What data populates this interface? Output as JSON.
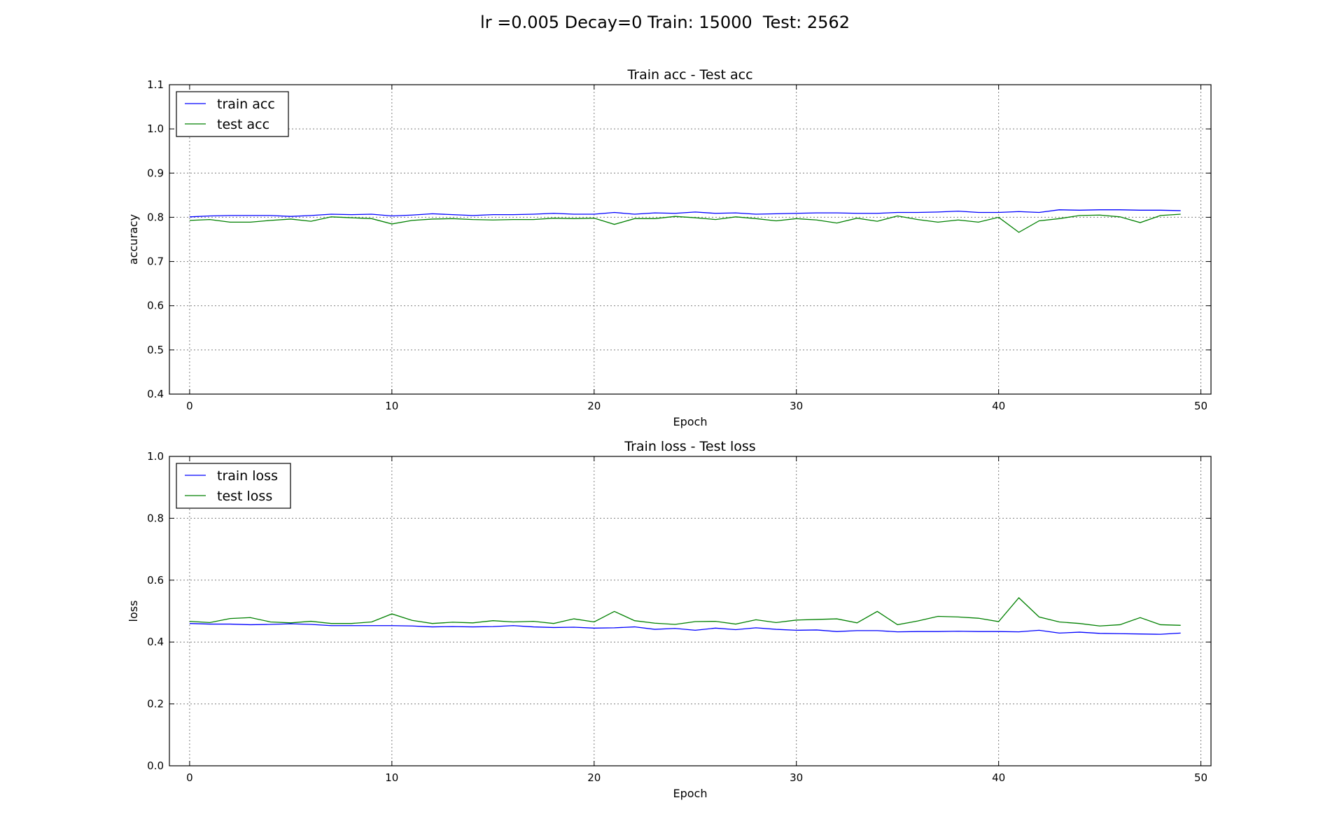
{
  "figure_title": "lr =0.005 Decay=0 Train: 15000  Test: 2562",
  "chart_data": [
    {
      "type": "line",
      "title": "Train acc - Test acc",
      "xlabel": "Epoch",
      "ylabel": "accuracy",
      "xlim": [
        -1,
        50.5
      ],
      "ylim": [
        0.4,
        1.1
      ],
      "xticks": [
        0,
        10,
        20,
        30,
        40,
        50
      ],
      "xtick_labels": [
        "0",
        "10",
        "20",
        "30",
        "40",
        "50"
      ],
      "yticks": [
        0.4,
        0.5,
        0.6,
        0.7,
        0.8,
        0.9,
        1.0,
        1.1
      ],
      "ytick_labels": [
        "0.4",
        "0.5",
        "0.6",
        "0.7",
        "0.8",
        "0.9",
        "1.0",
        "1.1"
      ],
      "grid": true,
      "legend_position": "upper-left",
      "x": [
        0,
        1,
        2,
        3,
        4,
        5,
        6,
        7,
        8,
        9,
        10,
        11,
        12,
        13,
        14,
        15,
        16,
        17,
        18,
        19,
        20,
        21,
        22,
        23,
        24,
        25,
        26,
        27,
        28,
        29,
        30,
        31,
        32,
        33,
        34,
        35,
        36,
        37,
        38,
        39,
        40,
        41,
        42,
        43,
        44,
        45,
        46,
        47,
        48,
        49
      ],
      "series": [
        {
          "name": "train acc",
          "color": "#0000ff",
          "values": [
            0.801,
            0.803,
            0.804,
            0.804,
            0.804,
            0.802,
            0.804,
            0.807,
            0.806,
            0.807,
            0.803,
            0.805,
            0.808,
            0.806,
            0.804,
            0.806,
            0.806,
            0.807,
            0.809,
            0.807,
            0.807,
            0.811,
            0.807,
            0.81,
            0.809,
            0.812,
            0.809,
            0.81,
            0.807,
            0.808,
            0.809,
            0.81,
            0.81,
            0.809,
            0.809,
            0.811,
            0.811,
            0.812,
            0.814,
            0.811,
            0.811,
            0.813,
            0.811,
            0.817,
            0.816,
            0.817,
            0.817,
            0.816,
            0.816,
            0.815
          ]
        },
        {
          "name": "test acc",
          "color": "#008000",
          "values": [
            0.793,
            0.795,
            0.789,
            0.789,
            0.793,
            0.796,
            0.791,
            0.801,
            0.799,
            0.797,
            0.785,
            0.793,
            0.796,
            0.797,
            0.795,
            0.794,
            0.795,
            0.795,
            0.798,
            0.797,
            0.798,
            0.784,
            0.797,
            0.797,
            0.802,
            0.799,
            0.795,
            0.801,
            0.797,
            0.792,
            0.797,
            0.794,
            0.787,
            0.798,
            0.791,
            0.803,
            0.795,
            0.789,
            0.794,
            0.789,
            0.8,
            0.766,
            0.792,
            0.797,
            0.804,
            0.805,
            0.801,
            0.788,
            0.804,
            0.807
          ]
        }
      ]
    },
    {
      "type": "line",
      "title": "Train loss - Test loss",
      "xlabel": "Epoch",
      "ylabel": "loss",
      "xlim": [
        -1,
        50.5
      ],
      "ylim": [
        0.0,
        1.0
      ],
      "xticks": [
        0,
        10,
        20,
        30,
        40,
        50
      ],
      "xtick_labels": [
        "0",
        "10",
        "20",
        "30",
        "40",
        "50"
      ],
      "yticks": [
        0.0,
        0.2,
        0.4,
        0.6,
        0.8,
        1.0
      ],
      "ytick_labels": [
        "0.0",
        "0.2",
        "0.4",
        "0.6",
        "0.8",
        "1.0"
      ],
      "grid": true,
      "legend_position": "upper-left",
      "x": [
        0,
        1,
        2,
        3,
        4,
        5,
        6,
        7,
        8,
        9,
        10,
        11,
        12,
        13,
        14,
        15,
        16,
        17,
        18,
        19,
        20,
        21,
        22,
        23,
        24,
        25,
        26,
        27,
        28,
        29,
        30,
        31,
        32,
        33,
        34,
        35,
        36,
        37,
        38,
        39,
        40,
        41,
        42,
        43,
        44,
        45,
        46,
        47,
        48,
        49
      ],
      "series": [
        {
          "name": "train loss",
          "color": "#0000ff",
          "values": [
            0.46,
            0.458,
            0.458,
            0.456,
            0.457,
            0.459,
            0.457,
            0.453,
            0.453,
            0.453,
            0.453,
            0.452,
            0.449,
            0.45,
            0.449,
            0.45,
            0.453,
            0.449,
            0.447,
            0.448,
            0.445,
            0.446,
            0.449,
            0.441,
            0.444,
            0.438,
            0.445,
            0.44,
            0.446,
            0.441,
            0.438,
            0.439,
            0.434,
            0.437,
            0.437,
            0.433,
            0.434,
            0.434,
            0.435,
            0.434,
            0.434,
            0.433,
            0.438,
            0.429,
            0.432,
            0.428,
            0.427,
            0.426,
            0.425,
            0.429
          ]
        },
        {
          "name": "test loss",
          "color": "#008000",
          "values": [
            0.467,
            0.463,
            0.476,
            0.479,
            0.465,
            0.462,
            0.467,
            0.46,
            0.46,
            0.465,
            0.491,
            0.47,
            0.46,
            0.464,
            0.462,
            0.469,
            0.465,
            0.467,
            0.46,
            0.475,
            0.465,
            0.499,
            0.469,
            0.461,
            0.457,
            0.466,
            0.467,
            0.458,
            0.472,
            0.463,
            0.471,
            0.473,
            0.475,
            0.462,
            0.499,
            0.456,
            0.468,
            0.483,
            0.481,
            0.477,
            0.466,
            0.543,
            0.481,
            0.465,
            0.46,
            0.452,
            0.456,
            0.479,
            0.456,
            0.454
          ]
        }
      ]
    }
  ]
}
